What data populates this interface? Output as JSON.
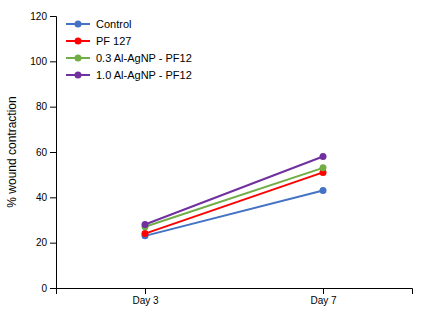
{
  "chart_data": {
    "type": "line",
    "categories": [
      "Day 3",
      "Day 7"
    ],
    "series": [
      {
        "name": "Control",
        "color": "#4472C4",
        "values": [
          23,
          43
        ]
      },
      {
        "name": "PF 127",
        "color": "#FF0000",
        "values": [
          24,
          51
        ]
      },
      {
        "name": "0.3 Al-AgNP - PF12",
        "color": "#70AD47",
        "values": [
          27,
          53
        ]
      },
      {
        "name": "1.0 Al-AgNP - PF12",
        "color": "#7030A0",
        "values": [
          28,
          58
        ]
      }
    ],
    "y_label": "% wound contraction",
    "ylim": [
      0,
      120
    ],
    "yticks": [
      0,
      20,
      40,
      60,
      80,
      100,
      120
    ],
    "marker": "circle",
    "grid": false,
    "legend": "upper left"
  }
}
